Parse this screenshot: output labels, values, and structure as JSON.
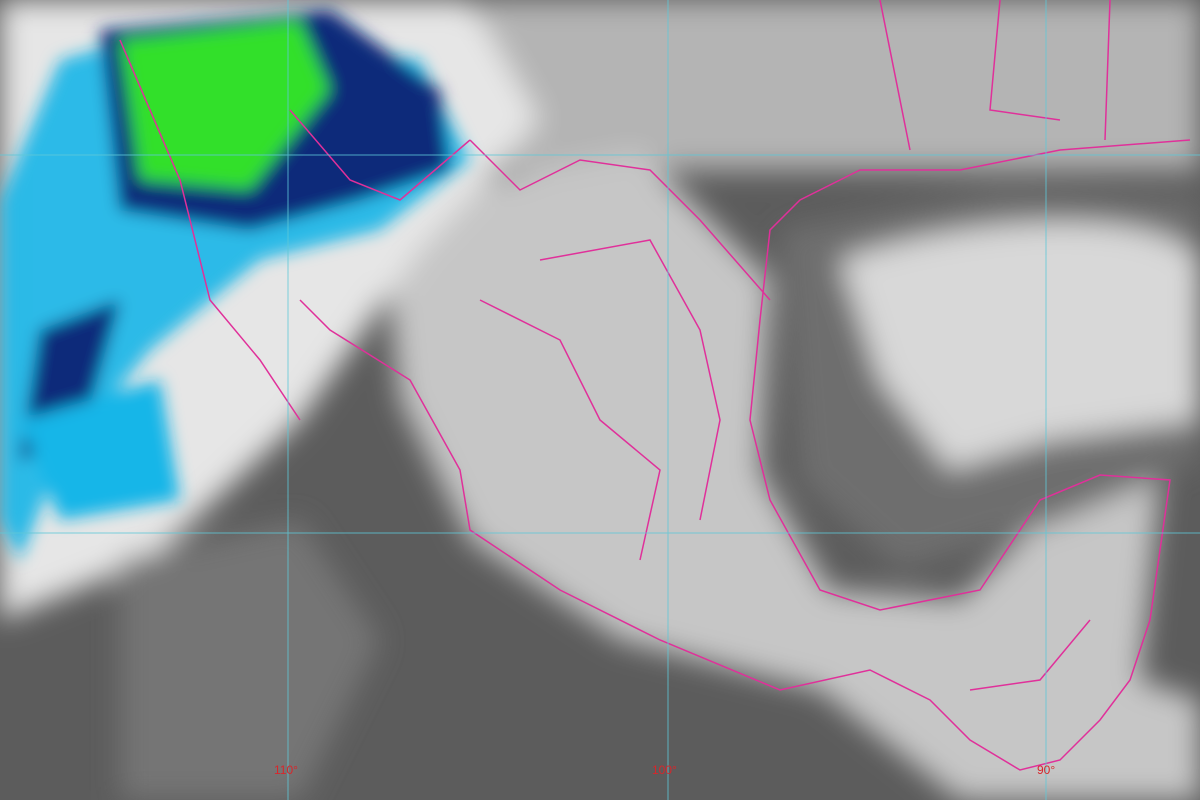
{
  "map": {
    "longitude_labels": [
      "110°",
      "100°",
      "90°"
    ],
    "colors": {
      "border_lines": "#e0309a",
      "graticule": "#5ec8d8",
      "label": "#d8262b",
      "cold_cloud_cyan": "#19b6e8",
      "cold_cloud_navy": "#0a2a7a",
      "coldest_cloud_green": "#33e02a"
    }
  }
}
